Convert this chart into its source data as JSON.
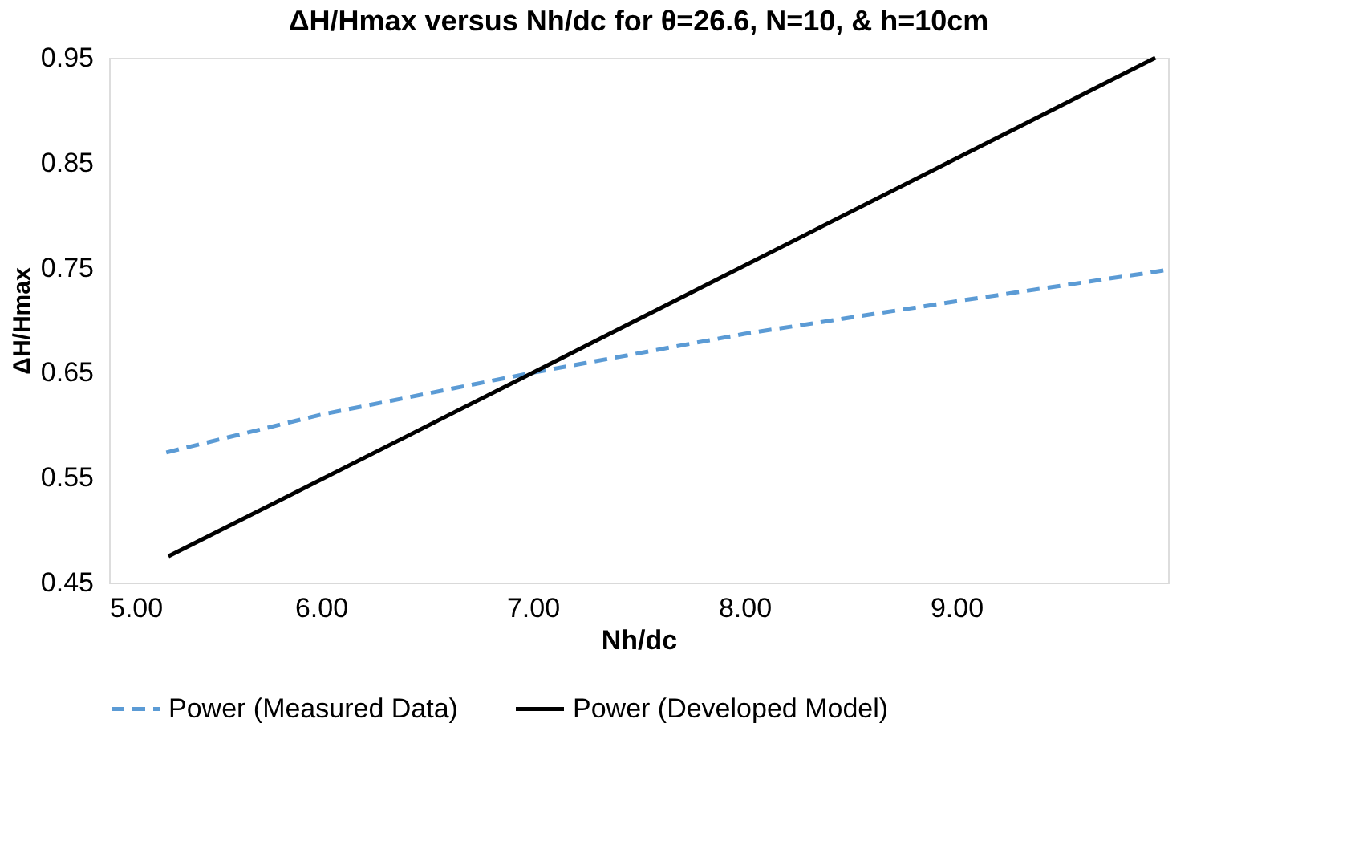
{
  "chart_data": {
    "type": "line",
    "title": "ΔH/Hmax versus Nh/dc for θ=26.6, N=10, & h=10cm",
    "xlabel": "Nh/dc",
    "ylabel": "ΔH/Hmax",
    "xlim": [
      5,
      10
    ],
    "xticks": [
      {
        "value": 5,
        "label": "5.00"
      },
      {
        "value": 6,
        "label": "6.00"
      },
      {
        "value": 7,
        "label": "7.00"
      },
      {
        "value": 8,
        "label": "8.00"
      },
      {
        "value": 9,
        "label": "9.00"
      }
    ],
    "ylim": [
      0.45,
      0.95
    ],
    "yticks": [
      0.45,
      0.55,
      0.65,
      0.75,
      0.85,
      0.95
    ],
    "grid": false,
    "legend": "bottom",
    "marker": "none",
    "series": [
      {
        "name": "Power (Measured Data)",
        "color": "#5b9bd5",
        "line_style": "dashed",
        "x": [
          5.27,
          6,
          7,
          8,
          9,
          10
        ],
        "values": [
          0.574,
          0.61,
          0.65,
          0.687,
          0.718,
          0.748
        ]
      },
      {
        "name": "Power (Developed Model)",
        "color": "#000000",
        "line_style": "solid",
        "x": [
          5.28,
          6,
          7,
          8,
          9,
          9.94
        ],
        "values": [
          0.475,
          0.548,
          0.65,
          0.752,
          0.854,
          0.95
        ]
      }
    ]
  }
}
